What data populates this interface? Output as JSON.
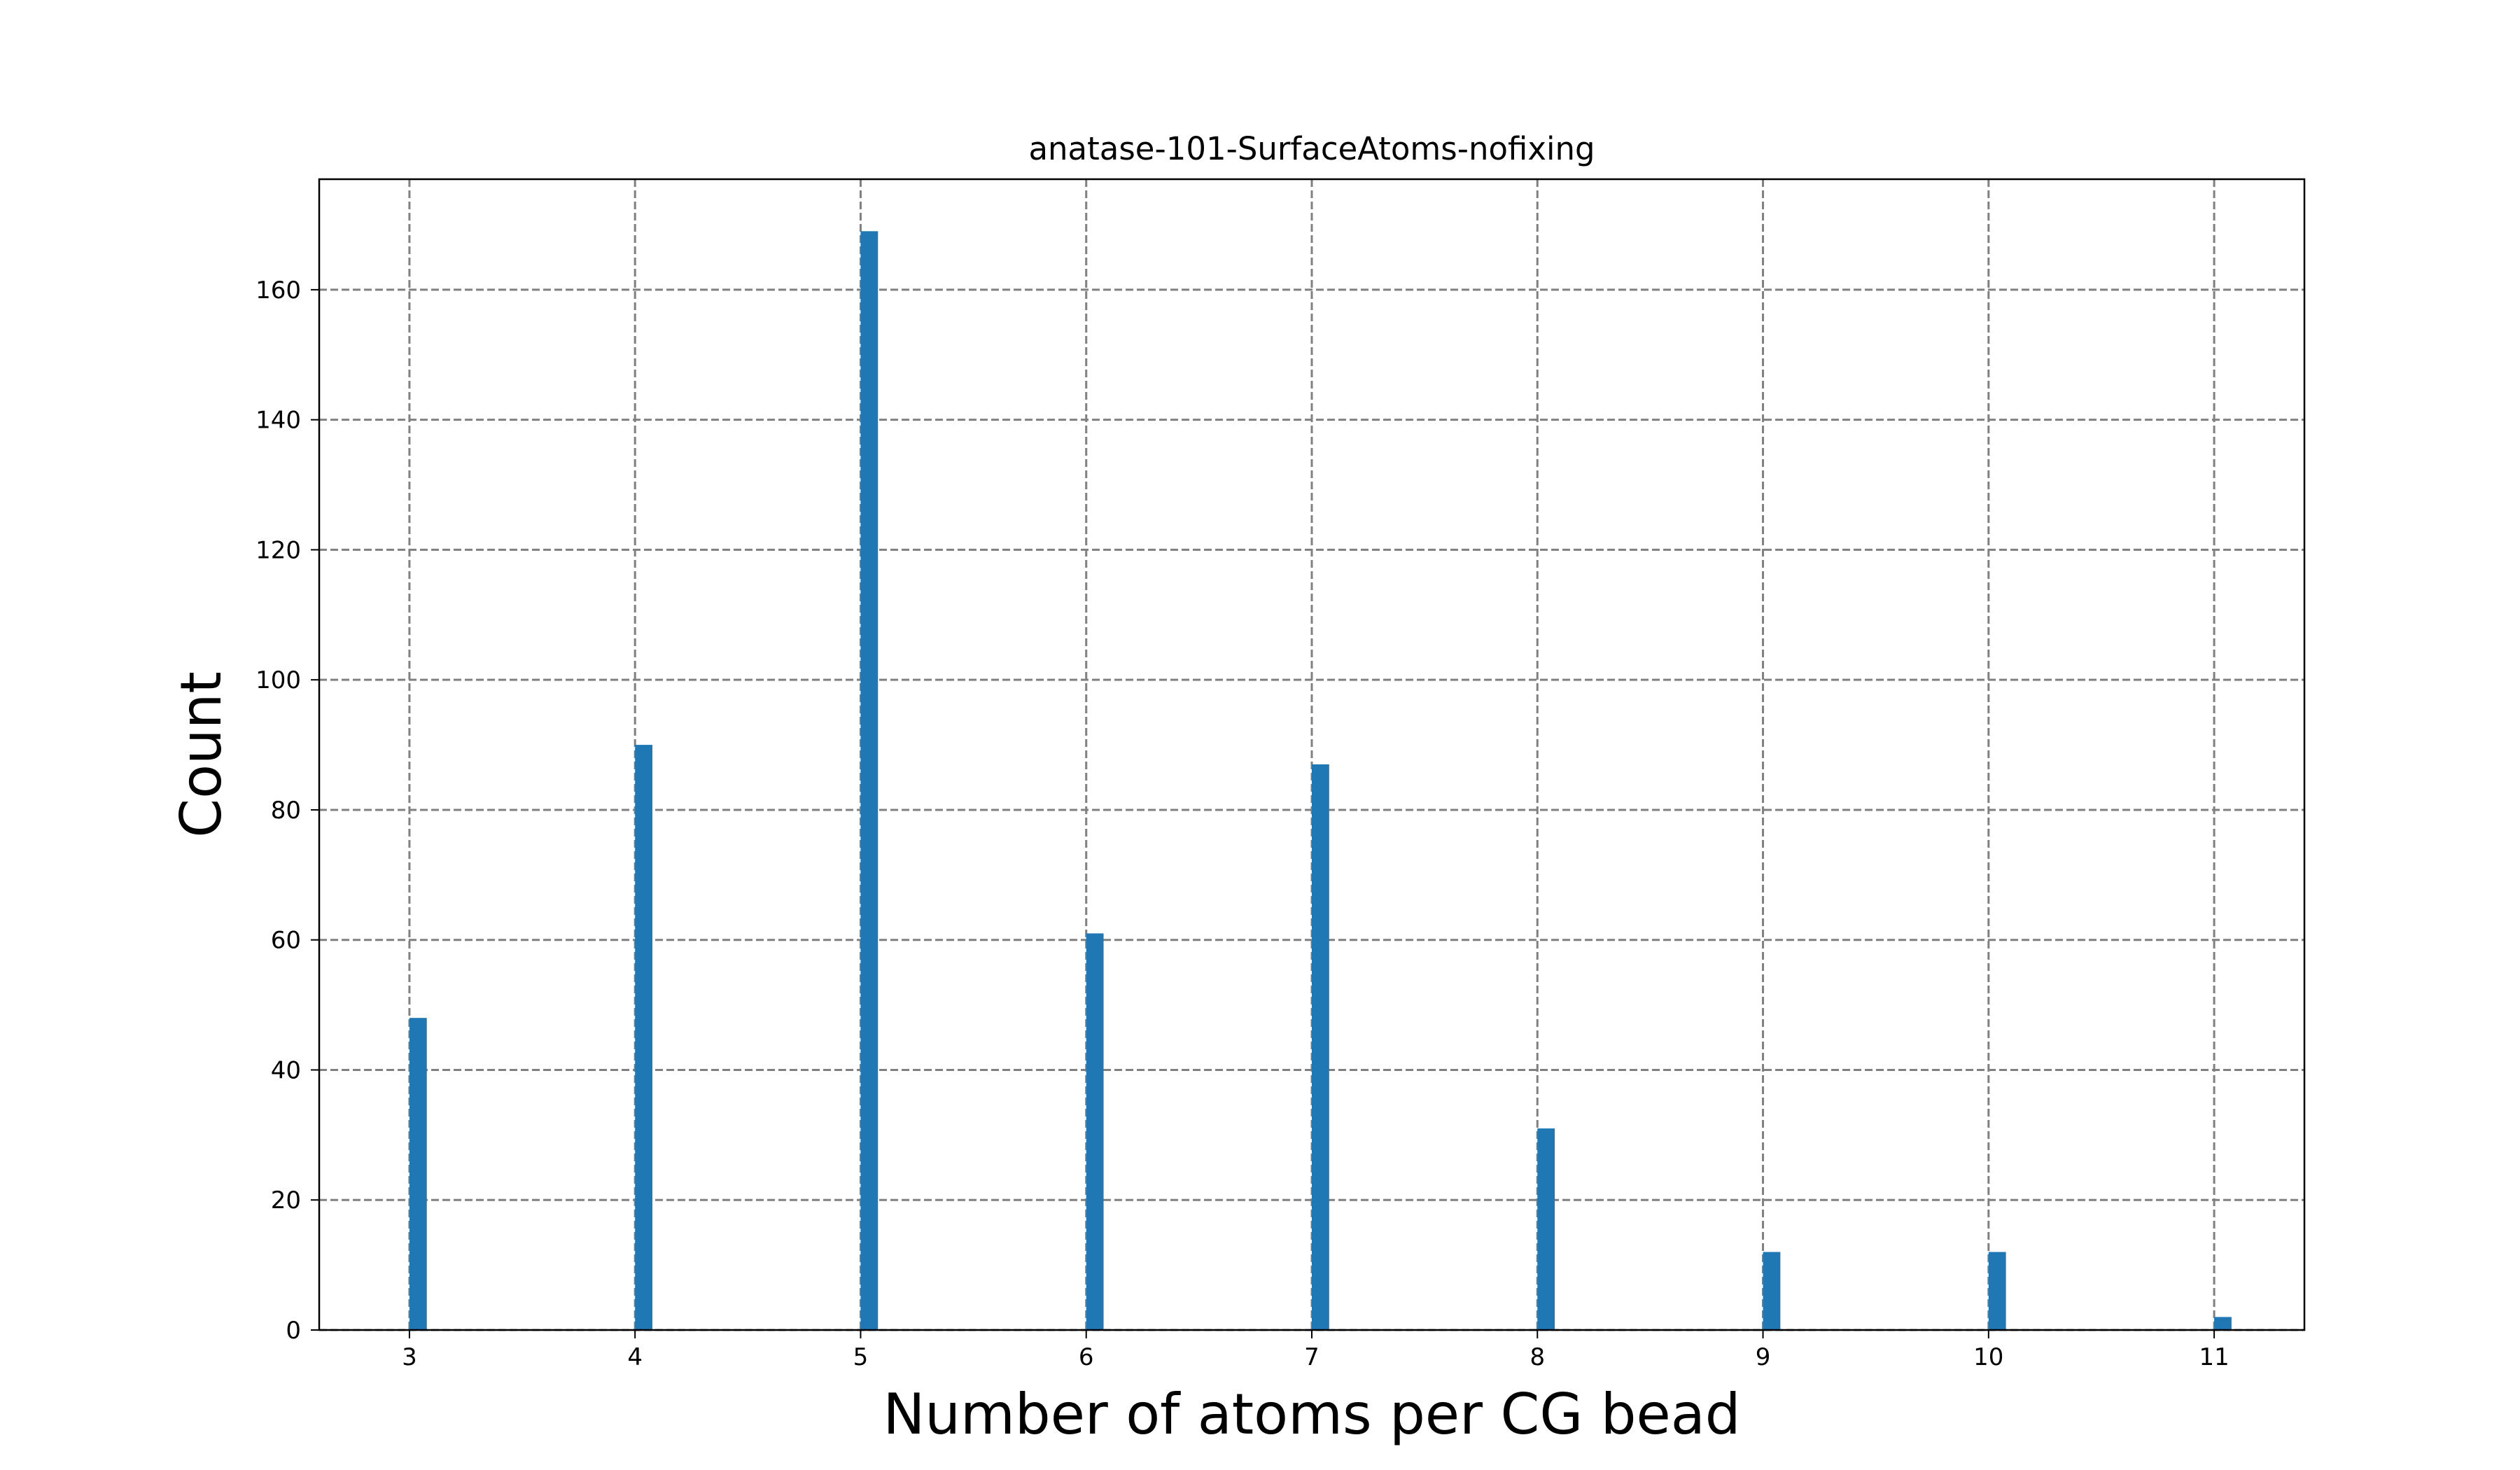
{
  "chart_data": {
    "type": "bar",
    "title": "anatase-101-SurfaceAtoms-nofixing",
    "xlabel": "Number of atoms per CG bead",
    "ylabel": "Count",
    "x": [
      3,
      4,
      5,
      6,
      7,
      8,
      9,
      10,
      11
    ],
    "values": [
      48,
      90,
      169,
      61,
      87,
      31,
      12,
      12,
      2
    ],
    "bar_color": "#1f77b4",
    "xlim": [
      2.6,
      11.4
    ],
    "ylim": [
      0,
      177
    ],
    "xticks": [
      "3",
      "4",
      "5",
      "6",
      "7",
      "8",
      "9",
      "10",
      "11"
    ],
    "yticks": [
      "0",
      "20",
      "40",
      "60",
      "80",
      "100",
      "120",
      "140",
      "160"
    ],
    "grid": true,
    "grid_style": "dashed",
    "legend": "none"
  }
}
